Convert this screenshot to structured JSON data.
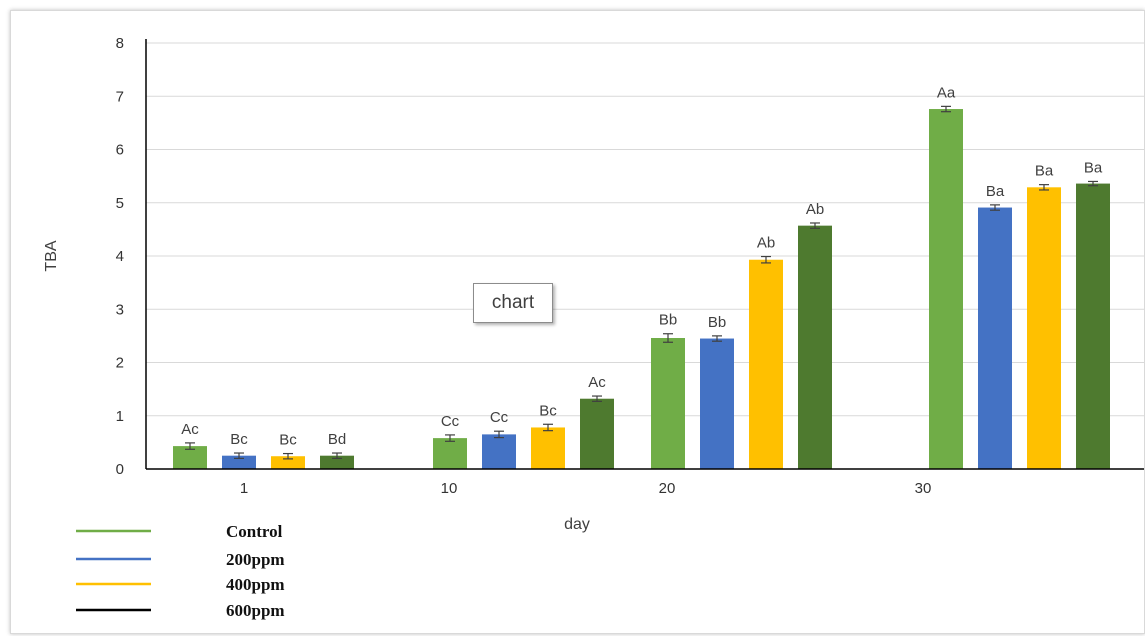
{
  "chart_data": {
    "type": "bar",
    "title": "",
    "xlabel": "day",
    "ylabel": "TBA",
    "categories": [
      "1",
      "10",
      "20",
      "30"
    ],
    "ylim": [
      0,
      8
    ],
    "yticks": [
      0,
      1,
      2,
      3,
      4,
      5,
      6,
      7,
      8
    ],
    "grid": true,
    "legend_position": "bottom-left",
    "series": [
      {
        "name": "Control",
        "color": "#70ad47",
        "values": [
          0.43,
          0.58,
          2.46,
          6.76
        ],
        "errors": [
          0.06,
          0.06,
          0.08,
          0.05
        ],
        "labels": [
          "Ac",
          "Cc",
          "Bb",
          "Aa"
        ]
      },
      {
        "name": "200ppm",
        "color": "#4472c4",
        "values": [
          0.25,
          0.65,
          2.45,
          4.91
        ],
        "errors": [
          0.05,
          0.06,
          0.05,
          0.05
        ],
        "labels": [
          "Bc",
          "Cc",
          "Bb",
          "Ba"
        ]
      },
      {
        "name": "400ppm",
        "color": "#ffc000",
        "values": [
          0.24,
          0.78,
          3.93,
          5.29
        ],
        "errors": [
          0.05,
          0.06,
          0.06,
          0.05
        ],
        "labels": [
          "Bc",
          "Bc",
          "Ab",
          "Ba"
        ]
      },
      {
        "name": "600ppm",
        "color": "#4e7a2f",
        "values": [
          0.25,
          1.32,
          4.57,
          5.36
        ],
        "errors": [
          0.05,
          0.05,
          0.05,
          0.04
        ],
        "labels": [
          "Bd",
          "Ac",
          "Ab",
          "Ba"
        ]
      }
    ],
    "legend_line_colors": [
      "#70ad47",
      "#4472c4",
      "#ffc000",
      "#000000"
    ],
    "chart_tag": "chart"
  }
}
